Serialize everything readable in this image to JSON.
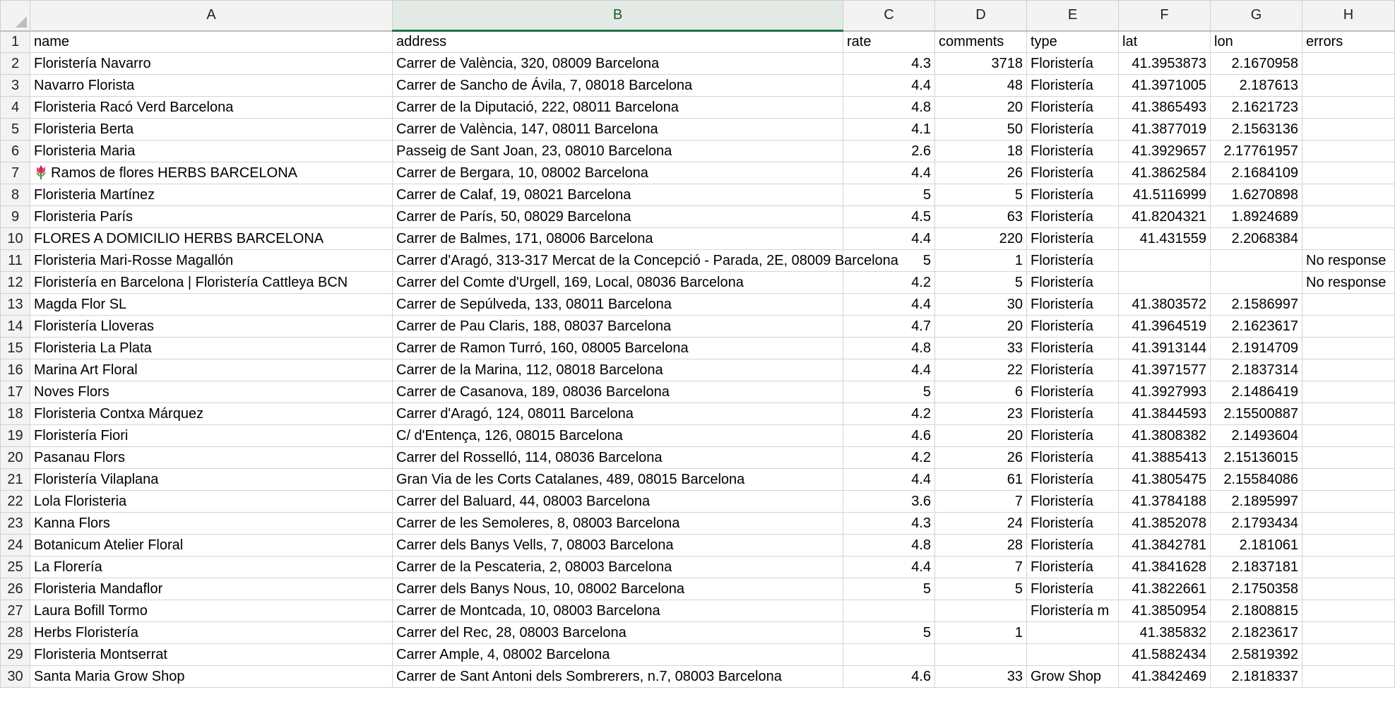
{
  "columns": [
    {
      "letter": "A",
      "selected": false
    },
    {
      "letter": "B",
      "selected": true
    },
    {
      "letter": "C",
      "selected": false
    },
    {
      "letter": "D",
      "selected": false
    },
    {
      "letter": "E",
      "selected": false
    },
    {
      "letter": "F",
      "selected": false
    },
    {
      "letter": "G",
      "selected": false
    },
    {
      "letter": "H",
      "selected": false
    }
  ],
  "header_row": {
    "num": "1",
    "name": "name",
    "address": "address",
    "rate": "rate",
    "comments": "comments",
    "type": "type",
    "lat": "lat",
    "lon": "lon",
    "errors": "errors"
  },
  "rows": [
    {
      "num": "2",
      "name": "Floristería Navarro",
      "address": "Carrer de València, 320, 08009 Barcelona",
      "rate": "4.3",
      "comments": "3718",
      "type": "Floristería",
      "lat": "41.3953873",
      "lon": "2.1670958",
      "errors": ""
    },
    {
      "num": "3",
      "name": "Navarro Florista",
      "address": "Carrer de Sancho de Ávila, 7, 08018 Barcelona",
      "rate": "4.4",
      "comments": "48",
      "type": "Floristería",
      "lat": "41.3971005",
      "lon": "2.187613",
      "errors": ""
    },
    {
      "num": "4",
      "name": "Floristeria Racó Verd Barcelona",
      "address": "Carrer de la Diputació, 222, 08011 Barcelona",
      "rate": "4.8",
      "comments": "20",
      "type": "Floristería",
      "lat": "41.3865493",
      "lon": "2.1621723",
      "errors": ""
    },
    {
      "num": "5",
      "name": "Floristeria Berta",
      "address": "Carrer de València, 147, 08011 Barcelona",
      "rate": "4.1",
      "comments": "50",
      "type": "Floristería",
      "lat": "41.3877019",
      "lon": "2.1563136",
      "errors": ""
    },
    {
      "num": "6",
      "name": "Floristeria Maria",
      "address": "Passeig de Sant Joan, 23, 08010 Barcelona",
      "rate": "2.6",
      "comments": "18",
      "type": "Floristería",
      "lat": "41.3929657",
      "lon": "2.17761957",
      "errors": ""
    },
    {
      "num": "7",
      "name": "Ramos de flores HERBS BARCELONA",
      "address": "Carrer de Bergara, 10, 08002 Barcelona",
      "rate": "4.4",
      "comments": "26",
      "type": "Floristería",
      "lat": "41.3862584",
      "lon": "2.1684109",
      "errors": "",
      "icon": "tulip-icon"
    },
    {
      "num": "8",
      "name": "Floristeria Martínez",
      "address": "Carrer de Calaf, 19, 08021 Barcelona",
      "rate": "5",
      "comments": "5",
      "type": "Floristería",
      "lat": "41.5116999",
      "lon": "1.6270898",
      "errors": ""
    },
    {
      "num": "9",
      "name": "Floristeria París",
      "address": "Carrer de París, 50, 08029 Barcelona",
      "rate": "4.5",
      "comments": "63",
      "type": "Floristería",
      "lat": "41.8204321",
      "lon": "1.8924689",
      "errors": ""
    },
    {
      "num": "10",
      "name": "FLORES A DOMICILIO HERBS BARCELONA",
      "address": "Carrer de Balmes, 171, 08006 Barcelona",
      "rate": "4.4",
      "comments": "220",
      "type": "Floristería",
      "lat": "41.431559",
      "lon": "2.2068384",
      "errors": ""
    },
    {
      "num": "11",
      "name": "Floristeria Mari-Rosse Magallón",
      "address": "Carrer d'Aragó, 313-317 Mercat de la Concepció - Parada, 2E, 08009 Barcelona",
      "rate": "5",
      "comments": "1",
      "type": "Floristería",
      "lat": "",
      "lon": "",
      "errors": "No response"
    },
    {
      "num": "12",
      "name": "Floristería en Barcelona | Floristería Cattleya BCN",
      "address": "Carrer del Comte d'Urgell, 169, Local, 08036 Barcelona",
      "rate": "4.2",
      "comments": "5",
      "type": "Floristería",
      "lat": "",
      "lon": "",
      "errors": "No response"
    },
    {
      "num": "13",
      "name": "Magda Flor SL",
      "address": "Carrer de Sepúlveda, 133, 08011 Barcelona",
      "rate": "4.4",
      "comments": "30",
      "type": "Floristería",
      "lat": "41.3803572",
      "lon": "2.1586997",
      "errors": ""
    },
    {
      "num": "14",
      "name": "Floristería Lloveras",
      "address": "Carrer de Pau Claris, 188, 08037 Barcelona",
      "rate": "4.7",
      "comments": "20",
      "type": "Floristería",
      "lat": "41.3964519",
      "lon": "2.1623617",
      "errors": ""
    },
    {
      "num": "15",
      "name": "Floristeria La Plata",
      "address": "Carrer de Ramon Turró, 160, 08005 Barcelona",
      "rate": "4.8",
      "comments": "33",
      "type": "Floristería",
      "lat": "41.3913144",
      "lon": "2.1914709",
      "errors": ""
    },
    {
      "num": "16",
      "name": "Marina Art Floral",
      "address": "Carrer de la Marina, 112, 08018 Barcelona",
      "rate": "4.4",
      "comments": "22",
      "type": "Floristería",
      "lat": "41.3971577",
      "lon": "2.1837314",
      "errors": ""
    },
    {
      "num": "17",
      "name": "Noves Flors",
      "address": "Carrer de Casanova, 189, 08036 Barcelona",
      "rate": "5",
      "comments": "6",
      "type": "Floristería",
      "lat": "41.3927993",
      "lon": "2.1486419",
      "errors": ""
    },
    {
      "num": "18",
      "name": "Floristeria Contxa Márquez",
      "address": "Carrer d'Aragó, 124, 08011 Barcelona",
      "rate": "4.2",
      "comments": "23",
      "type": "Floristería",
      "lat": "41.3844593",
      "lon": "2.15500887",
      "errors": ""
    },
    {
      "num": "19",
      "name": "Floristería Fiori",
      "address": "C/ d'Entença, 126, 08015 Barcelona",
      "rate": "4.6",
      "comments": "20",
      "type": "Floristería",
      "lat": "41.3808382",
      "lon": "2.1493604",
      "errors": ""
    },
    {
      "num": "20",
      "name": "Pasanau Flors",
      "address": "Carrer del Rosselló, 114, 08036 Barcelona",
      "rate": "4.2",
      "comments": "26",
      "type": "Floristería",
      "lat": "41.3885413",
      "lon": "2.15136015",
      "errors": ""
    },
    {
      "num": "21",
      "name": "Floristería Vilaplana",
      "address": "Gran Via de les Corts Catalanes, 489, 08015 Barcelona",
      "rate": "4.4",
      "comments": "61",
      "type": "Floristería",
      "lat": "41.3805475",
      "lon": "2.15584086",
      "errors": ""
    },
    {
      "num": "22",
      "name": "Lola Floristeria",
      "address": "Carrer del Baluard, 44, 08003 Barcelona",
      "rate": "3.6",
      "comments": "7",
      "type": "Floristería",
      "lat": "41.3784188",
      "lon": "2.1895997",
      "errors": ""
    },
    {
      "num": "23",
      "name": "Kanna Flors",
      "address": "Carrer de les Semoleres, 8, 08003 Barcelona",
      "rate": "4.3",
      "comments": "24",
      "type": "Floristería",
      "lat": "41.3852078",
      "lon": "2.1793434",
      "errors": ""
    },
    {
      "num": "24",
      "name": "Botanicum Atelier Floral",
      "address": "Carrer dels Banys Vells, 7, 08003 Barcelona",
      "rate": "4.8",
      "comments": "28",
      "type": "Floristería",
      "lat": "41.3842781",
      "lon": "2.181061",
      "errors": ""
    },
    {
      "num": "25",
      "name": "La Florería",
      "address": "Carrer de la Pescateria, 2, 08003 Barcelona",
      "rate": "4.4",
      "comments": "7",
      "type": "Floristería",
      "lat": "41.3841628",
      "lon": "2.1837181",
      "errors": ""
    },
    {
      "num": "26",
      "name": "Floristeria Mandaflor",
      "address": "Carrer dels Banys Nous, 10, 08002 Barcelona",
      "rate": "5",
      "comments": "5",
      "type": "Floristería",
      "lat": "41.3822661",
      "lon": "2.1750358",
      "errors": ""
    },
    {
      "num": "27",
      "name": "Laura Bofill Tormo",
      "address": "Carrer de Montcada, 10, 08003 Barcelona",
      "rate": "",
      "comments": "",
      "type": "Floristería m",
      "lat": "41.3850954",
      "lon": "2.1808815",
      "errors": ""
    },
    {
      "num": "28",
      "name": "Herbs Floristería",
      "address": "Carrer del Rec, 28, 08003 Barcelona",
      "rate": "5",
      "comments": "1",
      "type": "",
      "lat": "41.385832",
      "lon": "2.1823617",
      "errors": ""
    },
    {
      "num": "29",
      "name": "Floristeria Montserrat",
      "address": "Carrer Ample, 4, 08002 Barcelona",
      "rate": "",
      "comments": "",
      "type": "",
      "lat": "41.5882434",
      "lon": "2.5819392",
      "errors": ""
    },
    {
      "num": "30",
      "name": "Santa Maria Grow Shop",
      "address": "Carrer de Sant Antoni dels Sombrerers, n.7, 08003 Barcelona",
      "rate": "4.6",
      "comments": "33",
      "type": "Grow Shop",
      "lat": "41.3842469",
      "lon": "2.1818337",
      "errors": ""
    }
  ]
}
